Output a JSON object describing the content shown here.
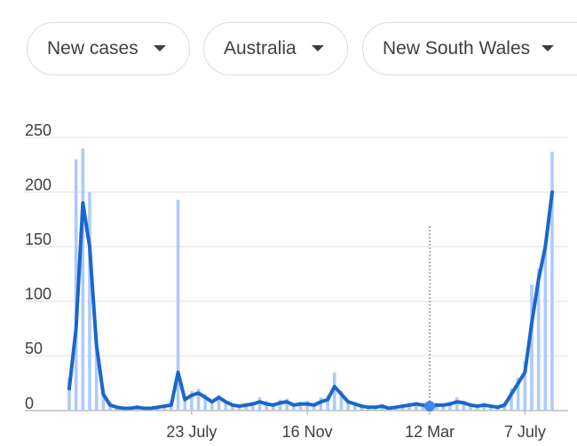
{
  "dropdowns": [
    "New cases",
    "Australia",
    "New South Wales"
  ],
  "chart_data": {
    "type": "line",
    "categories": [
      null,
      null,
      null,
      null,
      null,
      null,
      null,
      null,
      null,
      null,
      null,
      null,
      null,
      null,
      null,
      null,
      null,
      null,
      "23 July",
      null,
      null,
      null,
      null,
      null,
      null,
      null,
      null,
      null,
      null,
      null,
      null,
      null,
      null,
      null,
      null,
      "16 Nov",
      null,
      null,
      null,
      null,
      null,
      null,
      null,
      null,
      null,
      null,
      null,
      null,
      null,
      null,
      null,
      null,
      null,
      "12 Mar",
      null,
      null,
      null,
      null,
      null,
      null,
      null,
      null,
      null,
      null,
      null,
      null,
      null,
      "7 July",
      null,
      null,
      null,
      null
    ],
    "series": [
      {
        "type": "bar",
        "color": "#aecbfa",
        "values": [
          30,
          230,
          240,
          200,
          70,
          20,
          8,
          4,
          2,
          3,
          5,
          2,
          3,
          4,
          6,
          8,
          193,
          12,
          18,
          20,
          15,
          10,
          14,
          9,
          6,
          5,
          7,
          8,
          12,
          9,
          6,
          10,
          11,
          7,
          8,
          9,
          6,
          12,
          14,
          35,
          18,
          10,
          8,
          5,
          4,
          4,
          6,
          3,
          4,
          5,
          7,
          8,
          6,
          5,
          7,
          6,
          8,
          12,
          9,
          6,
          5,
          7,
          5,
          4,
          6,
          20,
          30,
          45,
          115,
          130,
          150,
          237
        ]
      },
      {
        "type": "line",
        "color": "#1a66cc",
        "values": [
          20,
          75,
          190,
          150,
          60,
          15,
          5,
          3,
          2,
          2,
          3,
          2,
          2,
          3,
          4,
          5,
          35,
          10,
          14,
          16,
          12,
          8,
          12,
          8,
          5,
          4,
          5,
          6,
          8,
          6,
          5,
          7,
          8,
          5,
          6,
          6,
          5,
          8,
          10,
          22,
          15,
          8,
          6,
          4,
          3,
          3,
          4,
          2,
          3,
          4,
          5,
          6,
          5,
          4,
          5,
          5,
          6,
          8,
          7,
          5,
          4,
          5,
          4,
          3,
          5,
          15,
          25,
          35,
          80,
          120,
          150,
          200
        ]
      }
    ],
    "ylim": [
      0,
      250
    ],
    "yticks": [
      0,
      50,
      100,
      150,
      200,
      250
    ],
    "grid": true
  }
}
